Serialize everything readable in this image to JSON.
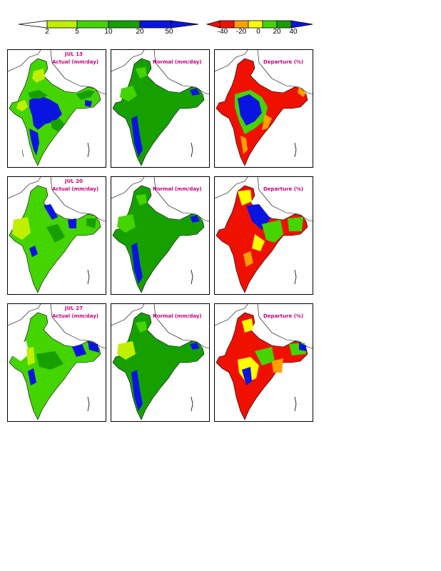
{
  "colorbar_amount": {
    "labels": [
      "2",
      "5",
      "10",
      "20",
      "50"
    ],
    "colors": [
      "#ffffff",
      "#bff000",
      "#44d400",
      "#16a000",
      "#0a14e0"
    ]
  },
  "colorbar_departure": {
    "labels": [
      "-40",
      "-20",
      "0",
      "20",
      "40"
    ],
    "colors": [
      "#f01000",
      "#ffa000",
      "#ffff00",
      "#44d400",
      "#16a000",
      "#0a14e0"
    ]
  },
  "rows": [
    {
      "date": "JUL 13",
      "actual_title": "Actual (mm/day)",
      "normal_title": "Normal (mm/day)",
      "departure_title": "Departure (%)"
    },
    {
      "date": "JUL 20",
      "actual_title": "Actual (mm/day)",
      "normal_title": "Normal (mm/day)",
      "departure_title": "Departure (%)"
    },
    {
      "date": "JUL 27",
      "actual_title": "Actual (mm/day)",
      "normal_title": "Normal (mm/day)",
      "departure_title": "Departure (%)"
    }
  ],
  "colors": {
    "title": "#c8007a",
    "land_green": "#16a000",
    "light_green": "#44d400",
    "yellow_green": "#bff000",
    "blue": "#0a14e0",
    "red": "#f01000",
    "orange": "#ffa000",
    "yellow": "#ffff00"
  }
}
